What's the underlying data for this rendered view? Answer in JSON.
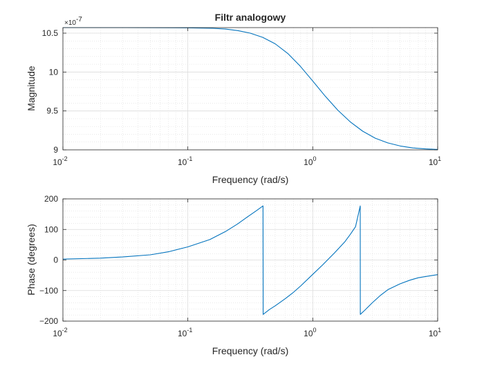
{
  "figure": {
    "background": "#ffffff",
    "line_color": "#0072BD",
    "grid_color": "#dcdcdc",
    "axis_color": "#262626"
  },
  "chart_data": [
    {
      "type": "line",
      "title": "Filtr analogowy",
      "xlabel": "Frequency (rad/s)",
      "ylabel": "Magnitude",
      "xscale": "log",
      "xlim": [
        0.01,
        10
      ],
      "ylim": [
        9e-07,
        1.0571e-06
      ],
      "y_exponent_label": "×10",
      "y_exponent": "-7",
      "xticks": [
        {
          "base": "10",
          "exp": "-2",
          "value": 0.01
        },
        {
          "base": "10",
          "exp": "-1",
          "value": 0.1
        },
        {
          "base": "10",
          "exp": "0",
          "value": 1
        },
        {
          "base": "10",
          "exp": "1",
          "value": 10
        }
      ],
      "yticks": [
        {
          "label": "9",
          "value": 9e-07
        },
        {
          "label": "9.5",
          "value": 9.5e-07
        },
        {
          "label": "10",
          "value": 1e-06
        },
        {
          "label": "10.5",
          "value": 1.05e-06
        }
      ],
      "grid": true,
      "minor_grid": true,
      "series": [
        {
          "x": [
            0.01,
            0.0316,
            0.1,
            0.158,
            0.2,
            0.251,
            0.316,
            0.398,
            0.501,
            0.631,
            0.794,
            1.0,
            1.259,
            1.585,
            1.995,
            2.512,
            3.162,
            3.981,
            5.012,
            6.31,
            7.943,
            10.0
          ],
          "y": [
            1.0571e-06,
            1.0571e-06,
            1.0568e-06,
            1.0562e-06,
            1.0552e-06,
            1.0533e-06,
            1.05e-06,
            1.0446e-06,
            1.0362e-06,
            1.0239e-06,
            1.0076e-06,
            9.885e-07,
            9.69e-07,
            9.51e-07,
            9.36e-07,
            9.24e-07,
            9.15e-07,
            9.09e-07,
            9.05e-07,
            9.025e-07,
            9.012e-07,
            9.005e-07
          ]
        }
      ]
    },
    {
      "type": "line",
      "title": "",
      "xlabel": "Frequency (rad/s)",
      "ylabel": "Phase (degrees)",
      "xscale": "log",
      "xlim": [
        0.01,
        10
      ],
      "ylim": [
        -200,
        200
      ],
      "xticks": [
        {
          "base": "10",
          "exp": "-2",
          "value": 0.01
        },
        {
          "base": "10",
          "exp": "-1",
          "value": 0.1
        },
        {
          "base": "10",
          "exp": "0",
          "value": 1
        },
        {
          "base": "10",
          "exp": "1",
          "value": 10
        }
      ],
      "yticks": [
        {
          "label": "−200",
          "value": -200
        },
        {
          "label": "−100",
          "value": -100
        },
        {
          "label": "0",
          "value": 0
        },
        {
          "label": "100",
          "value": 100
        },
        {
          "label": "200",
          "value": 200
        }
      ],
      "grid": true,
      "minor_grid": true,
      "series": [
        {
          "x": [
            0.01,
            0.02,
            0.03,
            0.05,
            0.07,
            0.1,
            0.15,
            0.2,
            0.25,
            0.3,
            0.35,
            0.4,
            0.401,
            0.45,
            0.5,
            0.6,
            0.7,
            0.8,
            1.0,
            1.2,
            1.5,
            1.8,
            2.0,
            2.2,
            2.4,
            2.401,
            2.6,
            3.0,
            3.5,
            4.0,
            5.0,
            6.0,
            7.0,
            8.0,
            10.0
          ],
          "y": [
            3,
            6,
            10,
            17,
            27,
            43,
            67,
            93,
            118,
            141,
            160,
            177,
            -178,
            -162,
            -150,
            -127,
            -106,
            -85,
            -47,
            -16,
            24,
            59,
            84,
            109,
            177,
            -178,
            -165,
            -140,
            -115,
            -97,
            -78,
            -66,
            -58,
            -54,
            -48
          ]
        }
      ]
    }
  ]
}
